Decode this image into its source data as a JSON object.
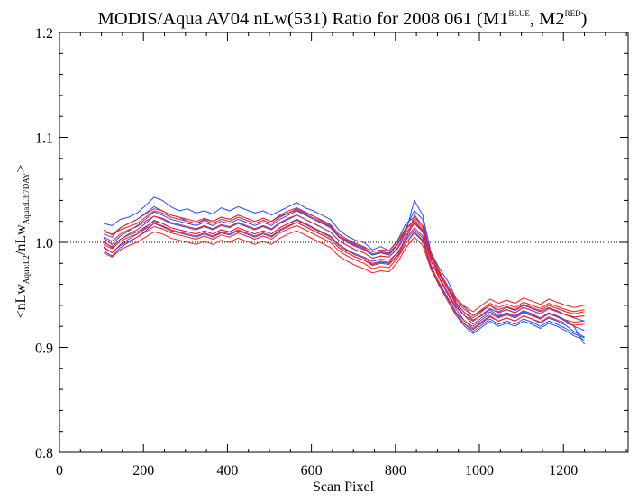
{
  "chart_data": {
    "type": "line",
    "title": {
      "main": "MODIS/Aqua AV04 nLw(531) Ratio for 2008 061 (M1",
      "sup1": "BLUE",
      "mid": ", M2",
      "sup2": "RED",
      "end": ")"
    },
    "xlabel": "Scan Pixel",
    "ylabel": {
      "prefix": "<nLw",
      "sub1": "Aqua:L2",
      "middle": "/nLw",
      "sub2": "Aqua:L3:7DAY",
      "suffix": ">"
    },
    "xlim": [
      0,
      1354
    ],
    "ylim": [
      0.8,
      1.2
    ],
    "xticks": [
      0,
      200,
      400,
      600,
      800,
      1000,
      1200
    ],
    "xtick_labels": [
      "0",
      "200",
      "400",
      "600",
      "800",
      "1000",
      "1200"
    ],
    "yticks": [
      0.8,
      0.9,
      1.0,
      1.1,
      1.2
    ],
    "ytick_labels": [
      "0.8",
      "0.9",
      "1.0",
      "1.1",
      "1.2"
    ],
    "reference_line": {
      "y": 1.0,
      "style": "dotted"
    },
    "colors": {
      "M1": "#1f4fff",
      "M2": "#ff1a1a"
    },
    "x": [
      105,
      125,
      145,
      165,
      185,
      205,
      225,
      245,
      265,
      285,
      305,
      325,
      345,
      365,
      385,
      405,
      425,
      445,
      465,
      485,
      505,
      525,
      545,
      565,
      585,
      605,
      625,
      645,
      665,
      685,
      705,
      725,
      745,
      765,
      785,
      805,
      825,
      845,
      865,
      885,
      905,
      925,
      945,
      965,
      985,
      1005,
      1025,
      1045,
      1065,
      1085,
      1105,
      1125,
      1145,
      1165,
      1185,
      1205,
      1225,
      1250
    ],
    "series": [
      {
        "group": "M1",
        "values": [
          1.018,
          1.016,
          1.022,
          1.024,
          1.028,
          1.035,
          1.043,
          1.04,
          1.034,
          1.03,
          1.032,
          1.028,
          1.03,
          1.027,
          1.033,
          1.03,
          1.034,
          1.031,
          1.028,
          1.03,
          1.026,
          1.03,
          1.034,
          1.038,
          1.033,
          1.03,
          1.026,
          1.022,
          1.012,
          1.006,
          1.002,
          1.0,
          0.993,
          0.996,
          0.992,
          1.002,
          1.018,
          1.024,
          1.016,
          0.99,
          0.975,
          0.963,
          0.946,
          0.938,
          0.93,
          0.935,
          0.94,
          0.934,
          0.938,
          0.935,
          0.94,
          0.937,
          0.934,
          0.938,
          0.935,
          0.931,
          0.928,
          0.925
        ]
      },
      {
        "group": "M1",
        "values": [
          1.008,
          1.005,
          1.014,
          1.018,
          1.022,
          1.028,
          1.034,
          1.03,
          1.026,
          1.024,
          1.02,
          1.018,
          1.022,
          1.02,
          1.024,
          1.022,
          1.026,
          1.023,
          1.02,
          1.023,
          1.02,
          1.025,
          1.028,
          1.032,
          1.028,
          1.025,
          1.02,
          1.016,
          1.006,
          1.002,
          0.998,
          0.995,
          0.988,
          0.99,
          0.988,
          0.998,
          1.014,
          1.03,
          1.022,
          0.985,
          0.97,
          0.958,
          0.942,
          0.933,
          0.926,
          0.93,
          0.936,
          0.93,
          0.933,
          0.93,
          0.935,
          0.932,
          0.928,
          0.933,
          0.93,
          0.926,
          0.92,
          0.903
        ]
      },
      {
        "group": "M1",
        "values": [
          1.001,
          0.995,
          1.003,
          1.008,
          1.012,
          1.018,
          1.025,
          1.022,
          1.018,
          1.016,
          1.014,
          1.012,
          1.015,
          1.012,
          1.016,
          1.014,
          1.018,
          1.015,
          1.012,
          1.015,
          1.012,
          1.018,
          1.022,
          1.026,
          1.022,
          1.018,
          1.014,
          1.01,
          1.002,
          0.997,
          0.993,
          0.99,
          0.985,
          0.987,
          0.986,
          0.994,
          1.006,
          1.018,
          1.01,
          0.982,
          0.965,
          0.95,
          0.936,
          0.925,
          0.918,
          0.924,
          0.93,
          0.925,
          0.928,
          0.925,
          0.93,
          0.927,
          0.923,
          0.928,
          0.925,
          0.921,
          0.915,
          0.91
        ]
      },
      {
        "group": "M1",
        "values": [
          0.996,
          0.99,
          0.998,
          1.003,
          1.008,
          1.014,
          1.021,
          1.018,
          1.014,
          1.012,
          1.01,
          1.008,
          1.011,
          1.008,
          1.012,
          1.01,
          1.014,
          1.011,
          1.008,
          1.011,
          1.008,
          1.014,
          1.018,
          1.022,
          1.018,
          1.014,
          1.01,
          1.006,
          0.998,
          0.993,
          0.989,
          0.986,
          0.982,
          0.984,
          0.983,
          0.99,
          1.002,
          1.012,
          1.004,
          0.978,
          0.96,
          0.946,
          0.932,
          0.922,
          0.915,
          0.921,
          0.927,
          0.922,
          0.925,
          0.922,
          0.927,
          0.924,
          0.92,
          0.925,
          0.922,
          0.918,
          0.913,
          0.909
        ]
      },
      {
        "group": "M1",
        "values": [
          1.004,
          0.998,
          1.006,
          1.011,
          1.016,
          1.022,
          1.029,
          1.026,
          1.022,
          1.02,
          1.018,
          1.016,
          1.019,
          1.016,
          1.02,
          1.018,
          1.022,
          1.019,
          1.016,
          1.019,
          1.016,
          1.022,
          1.026,
          1.03,
          1.026,
          1.022,
          1.018,
          1.014,
          1.005,
          1.0,
          0.996,
          0.993,
          0.988,
          0.99,
          0.989,
          0.998,
          1.01,
          1.04,
          1.026,
          0.99,
          0.972,
          0.956,
          0.94,
          0.93,
          0.922,
          0.928,
          0.934,
          0.929,
          0.932,
          0.929,
          0.934,
          0.931,
          0.927,
          0.932,
          0.929,
          0.925,
          0.92,
          0.916
        ]
      },
      {
        "group": "M1",
        "values": [
          0.992,
          0.987,
          0.995,
          1.0,
          1.005,
          1.011,
          1.018,
          1.015,
          1.011,
          1.009,
          1.007,
          1.005,
          1.008,
          1.005,
          1.009,
          1.007,
          1.011,
          1.008,
          1.005,
          1.008,
          1.005,
          1.011,
          1.015,
          1.019,
          1.015,
          1.011,
          1.007,
          1.003,
          0.995,
          0.99,
          0.986,
          0.983,
          0.979,
          0.981,
          0.98,
          0.987,
          0.999,
          1.01,
          1.002,
          0.975,
          0.958,
          0.944,
          0.93,
          0.92,
          0.913,
          0.919,
          0.925,
          0.92,
          0.923,
          0.92,
          0.925,
          0.922,
          0.918,
          0.923,
          0.92,
          0.916,
          0.911,
          0.907
        ]
      },
      {
        "group": "M2",
        "values": [
          1.01,
          1.008,
          1.012,
          1.015,
          1.018,
          1.024,
          1.03,
          1.028,
          1.024,
          1.022,
          1.02,
          1.018,
          1.021,
          1.018,
          1.022,
          1.02,
          1.024,
          1.021,
          1.018,
          1.021,
          1.018,
          1.024,
          1.028,
          1.031,
          1.027,
          1.023,
          1.019,
          1.015,
          1.006,
          1.001,
          0.997,
          0.994,
          0.989,
          0.991,
          0.99,
          0.999,
          1.012,
          1.022,
          1.014,
          0.988,
          0.972,
          0.958,
          0.944,
          0.936,
          0.93,
          0.936,
          0.942,
          0.938,
          0.941,
          0.938,
          0.943,
          0.94,
          0.937,
          0.942,
          0.939,
          0.936,
          0.934,
          0.936
        ]
      },
      {
        "group": "M2",
        "values": [
          1.0,
          0.996,
          1.003,
          1.007,
          1.01,
          1.015,
          1.02,
          1.018,
          1.014,
          1.012,
          1.01,
          1.008,
          1.011,
          1.008,
          1.012,
          1.01,
          1.014,
          1.011,
          1.008,
          1.011,
          1.008,
          1.014,
          1.018,
          1.021,
          1.017,
          1.013,
          1.009,
          1.005,
          0.997,
          0.992,
          0.988,
          0.985,
          0.98,
          0.982,
          0.981,
          0.99,
          1.004,
          1.014,
          1.006,
          0.982,
          0.966,
          0.952,
          0.938,
          0.93,
          0.925,
          0.931,
          0.937,
          0.933,
          0.936,
          0.933,
          0.938,
          0.935,
          0.932,
          0.937,
          0.934,
          0.931,
          0.929,
          0.93
        ]
      },
      {
        "group": "M2",
        "values": [
          0.995,
          0.99,
          0.997,
          1.001,
          1.005,
          1.01,
          1.015,
          1.013,
          1.009,
          1.007,
          1.005,
          1.003,
          1.006,
          1.003,
          1.007,
          1.005,
          1.009,
          1.006,
          1.003,
          1.006,
          1.003,
          1.009,
          1.013,
          1.016,
          1.012,
          1.008,
          1.004,
          1.0,
          0.992,
          0.987,
          0.983,
          0.98,
          0.975,
          0.977,
          0.976,
          0.985,
          0.999,
          1.009,
          1.001,
          0.977,
          0.961,
          0.947,
          0.933,
          0.925,
          0.92,
          0.926,
          0.932,
          0.928,
          0.931,
          0.928,
          0.933,
          0.93,
          0.927,
          0.932,
          0.929,
          0.926,
          0.924,
          0.925
        ]
      },
      {
        "group": "M2",
        "values": [
          1.005,
          1.001,
          1.008,
          1.012,
          1.015,
          1.02,
          1.025,
          1.023,
          1.019,
          1.017,
          1.015,
          1.013,
          1.016,
          1.013,
          1.017,
          1.015,
          1.019,
          1.016,
          1.013,
          1.016,
          1.013,
          1.019,
          1.023,
          1.026,
          1.022,
          1.018,
          1.014,
          1.01,
          1.002,
          0.997,
          0.993,
          0.99,
          0.985,
          0.987,
          0.986,
          0.995,
          1.009,
          1.019,
          1.011,
          0.985,
          0.969,
          0.955,
          0.941,
          0.933,
          0.928,
          0.934,
          0.94,
          0.936,
          0.939,
          0.936,
          0.941,
          0.938,
          0.935,
          0.94,
          0.937,
          0.934,
          0.932,
          0.934
        ]
      },
      {
        "group": "M2",
        "values": [
          0.99,
          0.986,
          0.993,
          0.997,
          1.0,
          1.005,
          1.01,
          1.008,
          1.004,
          1.002,
          1.0,
          0.998,
          1.001,
          0.998,
          1.002,
          1.0,
          1.004,
          1.001,
          0.998,
          1.001,
          0.998,
          1.004,
          1.008,
          1.011,
          1.007,
          1.003,
          0.999,
          0.995,
          0.987,
          0.982,
          0.978,
          0.975,
          0.971,
          0.973,
          0.972,
          0.981,
          0.995,
          1.005,
          0.997,
          0.974,
          0.958,
          0.944,
          0.93,
          0.922,
          0.917,
          0.923,
          0.929,
          0.925,
          0.928,
          0.925,
          0.93,
          0.927,
          0.924,
          0.929,
          0.926,
          0.923,
          0.921,
          0.922
        ]
      },
      {
        "group": "M2",
        "values": [
          0.998,
          0.994,
          1.001,
          1.005,
          1.008,
          1.013,
          1.018,
          1.016,
          1.012,
          1.01,
          1.008,
          1.006,
          1.009,
          1.006,
          1.01,
          1.008,
          1.012,
          1.009,
          1.006,
          1.009,
          1.006,
          1.012,
          1.016,
          1.019,
          1.015,
          1.011,
          1.007,
          1.003,
          0.995,
          0.99,
          0.986,
          0.983,
          0.978,
          0.98,
          0.979,
          0.988,
          1.002,
          1.026,
          1.016,
          0.987,
          0.966,
          0.952,
          0.938,
          0.93,
          0.925,
          0.931,
          0.937,
          0.933,
          0.936,
          0.933,
          0.938,
          0.935,
          0.932,
          0.937,
          0.934,
          0.931,
          0.929,
          0.93
        ]
      },
      {
        "group": "M2",
        "values": [
          1.012,
          1.007,
          1.014,
          1.018,
          1.022,
          1.027,
          1.032,
          1.03,
          1.026,
          1.024,
          1.022,
          1.02,
          1.023,
          1.02,
          1.024,
          1.022,
          1.026,
          1.023,
          1.02,
          1.023,
          1.02,
          1.026,
          1.03,
          1.033,
          1.029,
          1.025,
          1.021,
          1.017,
          1.008,
          1.003,
          0.999,
          0.996,
          0.991,
          0.993,
          0.992,
          1.001,
          1.014,
          1.02,
          1.012,
          0.986,
          0.97,
          0.958,
          0.946,
          0.939,
          0.934,
          0.94,
          0.946,
          0.942,
          0.945,
          0.942,
          0.947,
          0.944,
          0.941,
          0.946,
          0.943,
          0.94,
          0.938,
          0.94
        ]
      }
    ]
  }
}
